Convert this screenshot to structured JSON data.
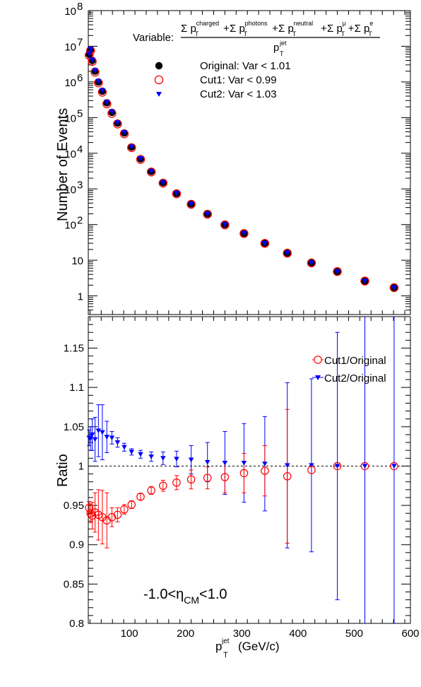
{
  "chart_data": [
    {
      "type": "scatter",
      "yscale": "log",
      "ylabel": "Number of Events",
      "ylim": [
        0.3,
        100000000
      ],
      "xlim": [
        27,
        600
      ],
      "yticks": [
        {
          "label_base": "10",
          "label_exp": "8"
        },
        {
          "label_base": "10",
          "label_exp": "7"
        },
        {
          "label_base": "10",
          "label_exp": "6"
        },
        {
          "label_base": "10",
          "label_exp": "5"
        },
        {
          "label_base": "10",
          "label_exp": "4"
        },
        {
          "label_base": "10",
          "label_exp": "3"
        },
        {
          "label_base": "10",
          "label_exp": "2"
        },
        {
          "label_base": "10",
          "label_exp": ""
        },
        {
          "label_base": "1",
          "label_exp": ""
        }
      ],
      "ytick_values": [
        100000000,
        10000000,
        1000000,
        100000,
        10000,
        1000,
        100,
        10,
        1
      ],
      "legend": {
        "placement": "top",
        "variable_prefix": "Variable:",
        "formula": {
          "numerator": [
            {
              "sym": "Σ p",
              "sub": "T",
              "sup": "charged",
              "op": "+"
            },
            {
              "sym": "Σ p",
              "sub": "T",
              "sup": "photons",
              "op": "+"
            },
            {
              "sym": "Σ p",
              "sub": "T",
              "sup": "neutral",
              "op": "+"
            },
            {
              "sym": "Σ p",
              "sub": "T",
              "sup": "μ",
              "op": "+"
            },
            {
              "sym": "Σ p",
              "sub": "T",
              "sup": "e",
              "op": ""
            }
          ],
          "denominator": {
            "sym": "p",
            "sub": "T",
            "sup": "jet"
          }
        },
        "entries": [
          {
            "label": "Original: Var < 1.01",
            "marker": "filled-circle",
            "color": "#000000"
          },
          {
            "label": "Cut1: Var < 0.99",
            "marker": "open-circle",
            "color": "#ff0000"
          },
          {
            "label": "Cut2: Var < 1.03",
            "marker": "triangle-down",
            "color": "#0000ff"
          }
        ]
      },
      "series": [
        {
          "name": "Original",
          "color": "#000000",
          "x": [
            28.5,
            31,
            34,
            39,
            45,
            52,
            60,
            69,
            79,
            91,
            104,
            120,
            139,
            160,
            184,
            210,
            239,
            270,
            304,
            341,
            381,
            424,
            470,
            519,
            571
          ],
          "y": [
            6000000,
            8000000,
            4000000,
            2000000,
            1000000,
            550000,
            260000,
            140000,
            70000,
            37000,
            15000,
            7000,
            3100,
            1500,
            750,
            380,
            200,
            100,
            57,
            30,
            16,
            8.5,
            4.8,
            2.6,
            1.7
          ]
        },
        {
          "name": "Cut1",
          "color": "#ff0000",
          "x": [
            28.5,
            31,
            34,
            39,
            45,
            52,
            60,
            69,
            79,
            91,
            104,
            120,
            139,
            160,
            184,
            210,
            239,
            270,
            304,
            341,
            381,
            424,
            470,
            519,
            571
          ],
          "y": [
            5600000,
            7500000,
            3750000,
            1880000,
            940000,
            515000,
            243000,
            131000,
            66000,
            35000,
            14300,
            6700,
            2980,
            1450,
            730,
            370,
            195,
            98,
            56,
            29.7,
            15.8,
            8.4,
            4.8,
            2.6,
            1.7
          ]
        },
        {
          "name": "Cut2",
          "color": "#0000ff",
          "x": [
            28.5,
            31,
            34,
            39,
            45,
            52,
            60,
            69,
            79,
            91,
            104,
            120,
            139,
            160,
            184,
            210,
            239,
            270,
            304,
            341,
            381,
            424,
            470,
            519,
            571
          ],
          "y": [
            6200000,
            8300000,
            4150000,
            2090000,
            1040000,
            572000,
            270000,
            145000,
            72000,
            38000,
            15200,
            7100,
            3140,
            1510,
            755,
            382,
            201,
            100,
            57,
            30,
            16,
            8.5,
            4.8,
            2.6,
            1.7
          ]
        }
      ]
    },
    {
      "type": "scatter",
      "ylabel": "Ratio",
      "xlabel_base": "p",
      "xlabel_sup": "jet",
      "xlabel_sub": "T",
      "xlabel_units": "(GeV/c)",
      "xlim": [
        27,
        600
      ],
      "ylim": [
        0.8,
        1.19
      ],
      "xticks": [
        100,
        200,
        300,
        400,
        500,
        600
      ],
      "yticks": [
        "0.8",
        "0.85",
        "0.9",
        "0.95",
        "1",
        "1.05",
        "1.1",
        "1.15"
      ],
      "ytick_values": [
        0.8,
        0.85,
        0.9,
        0.95,
        1.0,
        1.05,
        1.1,
        1.15
      ],
      "reference_line": 1,
      "annotation": {
        "pre": "-1.0<η",
        "sub": "CM",
        "post": "<1.0"
      },
      "legend": {
        "placement": "top-right",
        "entries": [
          {
            "label": "Cut1/Original",
            "marker": "open-circle",
            "color": "#ff0000"
          },
          {
            "label": "Cut2/Original",
            "marker": "triangle-down",
            "color": "#0000ff"
          }
        ]
      },
      "series": [
        {
          "name": "Cut1/Original",
          "color": "#ff0000",
          "x": [
            28.5,
            31,
            34,
            39,
            45,
            52,
            60,
            69,
            79,
            91,
            104,
            120,
            139,
            160,
            184,
            210,
            239,
            270,
            304,
            341,
            381,
            424,
            470,
            519,
            571
          ],
          "y": [
            0.947,
            0.94,
            0.937,
            0.941,
            0.938,
            0.935,
            0.931,
            0.935,
            0.938,
            0.945,
            0.951,
            0.961,
            0.969,
            0.975,
            0.979,
            0.983,
            0.985,
            0.986,
            0.991,
            0.994,
            0.987,
            0.995,
            1.0,
            1.0,
            1.0
          ],
          "err": [
            0.008,
            0.012,
            0.017,
            0.025,
            0.032,
            0.034,
            0.035,
            0.012,
            0.009,
            0.006,
            0.005,
            0.004,
            0.005,
            0.007,
            0.009,
            0.012,
            0.014,
            0.02,
            0.025,
            0.032,
            0.085,
            0.0,
            0.0,
            0.0,
            0.0
          ]
        },
        {
          "name": "Cut2/Original",
          "color": "#0000ff",
          "x": [
            28.5,
            31,
            34,
            39,
            45,
            52,
            60,
            69,
            79,
            91,
            104,
            120,
            139,
            160,
            184,
            210,
            239,
            270,
            304,
            341,
            381,
            424,
            470,
            519,
            571
          ],
          "y": [
            1.036,
            1.035,
            1.04,
            1.034,
            1.045,
            1.043,
            1.037,
            1.036,
            1.03,
            1.024,
            1.018,
            1.015,
            1.012,
            1.01,
            1.009,
            1.008,
            1.005,
            1.004,
            1.004,
            1.003,
            1.001,
            1.001,
            1.0,
            1.0,
            1.0
          ],
          "err": [
            0.01,
            0.015,
            0.02,
            0.028,
            0.033,
            0.035,
            0.02,
            0.008,
            0.006,
            0.005,
            0.004,
            0.005,
            0.006,
            0.008,
            0.01,
            0.018,
            0.025,
            0.04,
            0.05,
            0.06,
            0.105,
            0.11,
            0.17,
            0.23,
            0.3
          ]
        }
      ]
    }
  ]
}
